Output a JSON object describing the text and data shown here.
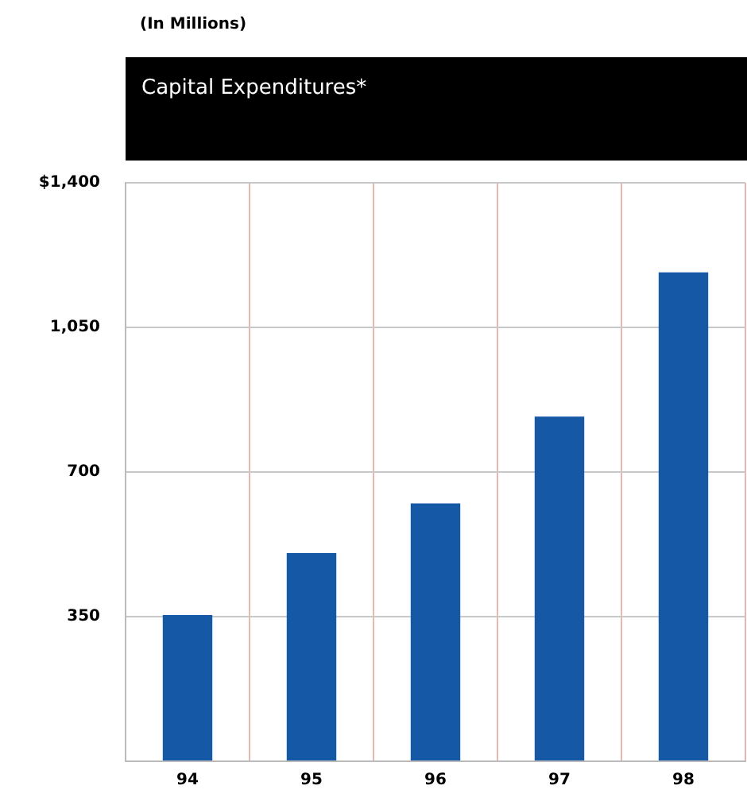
{
  "chart_data": {
    "type": "bar",
    "title": "Capital Expenditures*",
    "subtitle": "(In Millions)",
    "categories": [
      "94",
      "95",
      "96",
      "97",
      "98"
    ],
    "values": [
      354,
      504,
      624,
      834,
      1183
    ],
    "color": "#1458a6",
    "ylim": [
      0,
      1400
    ],
    "yticks": [
      {
        "value": 0,
        "label": null
      },
      350,
      700,
      {
        "value": 1050,
        "label": "1,050"
      },
      {
        "value": 1400,
        "label": "$1,400"
      }
    ],
    "grid": true
  }
}
